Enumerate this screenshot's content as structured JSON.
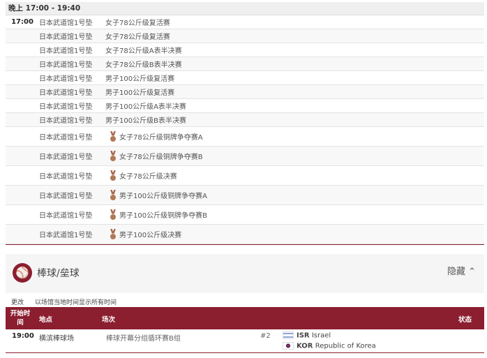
{
  "session": {
    "label": "晚上 17:00 - 19:40"
  },
  "judo_rows": [
    {
      "time": "17:00",
      "venue": "日本武道馆1号垫",
      "event": "女子78公斤级复活赛",
      "medal": false
    },
    {
      "time": "",
      "venue": "日本武道馆1号垫",
      "event": "女子78公斤级复活赛",
      "medal": false
    },
    {
      "time": "",
      "venue": "日本武道馆1号垫",
      "event": "女子78公斤级A表半决赛",
      "medal": false
    },
    {
      "time": "",
      "venue": "日本武道馆1号垫",
      "event": "女子78公斤级B表半决赛",
      "medal": false
    },
    {
      "time": "",
      "venue": "日本武道馆1号垫",
      "event": "男子100公斤级复活赛",
      "medal": false
    },
    {
      "time": "",
      "venue": "日本武道馆1号垫",
      "event": "男子100公斤级复活赛",
      "medal": false
    },
    {
      "time": "",
      "venue": "日本武道馆1号垫",
      "event": "男子100公斤级A表半决赛",
      "medal": false
    },
    {
      "time": "",
      "venue": "日本武道馆1号垫",
      "event": "男子100公斤级B表半决赛",
      "medal": false
    },
    {
      "time": "",
      "venue": "日本武道馆1号垫",
      "event": "女子78公斤级铜牌争夺赛A",
      "medal": true
    },
    {
      "time": "",
      "venue": "日本武道馆1号垫",
      "event": "女子78公斤级铜牌争夺赛B",
      "medal": true
    },
    {
      "time": "",
      "venue": "日本武道馆1号垫",
      "event": "女子78公斤级决赛",
      "medal": true
    },
    {
      "time": "",
      "venue": "日本武道馆1号垫",
      "event": "男子100公斤级铜牌争夺赛A",
      "medal": true
    },
    {
      "time": "",
      "venue": "日本武道馆1号垫",
      "event": "男子100公斤级铜牌争夺赛B",
      "medal": true
    },
    {
      "time": "",
      "venue": "日本武道馆1号垫",
      "event": "男子100公斤级决赛",
      "medal": true
    }
  ],
  "baseball": {
    "icon": "baseball-icon",
    "name": "棒球/垒球",
    "hide_label": "隐藏",
    "change_label": "更改",
    "timezone_note": "以场馆当地时间显示所有时间",
    "headers": {
      "time": "开始时间",
      "venue": "地点",
      "event": "场次",
      "status": "状态"
    },
    "row": {
      "time": "19:00",
      "venue": "横滨棒球场",
      "event": "棒球开幕分组循环赛B组",
      "game": "#2",
      "teams": [
        {
          "code": "ISR",
          "name": "Israel",
          "flag": "israel-flag"
        },
        {
          "code": "KOR",
          "name": "Republic of Korea",
          "flag": "korea-flag"
        }
      ]
    }
  },
  "colors": {
    "accent": "#8b1e2f"
  }
}
